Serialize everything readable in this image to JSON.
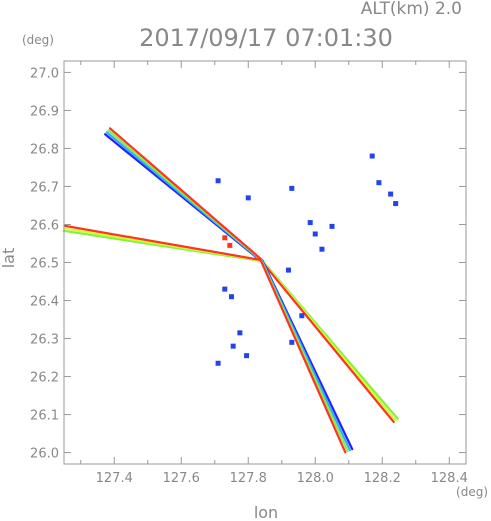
{
  "chart_data": {
    "type": "scatter",
    "title": "2017/09/17 07:01:30",
    "subtitle": "ALT(km)  2.0",
    "xlabel": "lon",
    "ylabel": "lat",
    "xunit": "(deg)",
    "yunit": "(deg)",
    "xlim": [
      127.25,
      128.45
    ],
    "ylim": [
      25.97,
      27.03
    ],
    "xticks": [
      "127.4",
      "127.6",
      "127.8",
      "128.0",
      "128.2",
      "128.4"
    ],
    "xtick_values": [
      127.4,
      127.6,
      127.8,
      128.0,
      128.2,
      128.4
    ],
    "yticks": [
      "26.0",
      "26.1",
      "26.2",
      "26.3",
      "26.4",
      "26.5",
      "26.6",
      "26.7",
      "26.8",
      "26.9",
      "27.0"
    ],
    "ytick_values": [
      26.0,
      26.1,
      26.2,
      26.3,
      26.4,
      26.5,
      26.6,
      26.7,
      26.8,
      26.9,
      27.0
    ],
    "radar_center": [
      127.84,
      26.505
    ],
    "beams": [
      {
        "from": [
          127.84,
          26.505
        ],
        "to": [
          127.38,
          26.845
        ],
        "colors": [
          "#2222ff",
          "#33aaff",
          "#88ee44",
          "#ff3322"
        ]
      },
      {
        "from": [
          127.84,
          26.505
        ],
        "to": [
          127.25,
          26.59
        ],
        "colors": [
          "#88ee44",
          "#ccff33",
          "#ff3322"
        ]
      },
      {
        "from": [
          127.84,
          26.505
        ],
        "to": [
          128.24,
          26.085
        ],
        "colors": [
          "#88ee44",
          "#ccff33",
          "#ff3322"
        ]
      },
      {
        "from": [
          127.84,
          26.505
        ],
        "to": [
          128.1,
          26.005
        ],
        "colors": [
          "#2222ff",
          "#33aaff",
          "#88ee44",
          "#ff3322"
        ]
      }
    ],
    "echoes": [
      {
        "x": 127.71,
        "y": 26.715,
        "color": "#2244ee"
      },
      {
        "x": 127.8,
        "y": 26.67,
        "color": "#2244ee"
      },
      {
        "x": 127.93,
        "y": 26.695,
        "color": "#2244ee"
      },
      {
        "x": 127.92,
        "y": 26.48,
        "color": "#2244ee"
      },
      {
        "x": 127.985,
        "y": 26.605,
        "color": "#2244ee"
      },
      {
        "x": 128.0,
        "y": 26.575,
        "color": "#2244ee"
      },
      {
        "x": 128.02,
        "y": 26.535,
        "color": "#2244ee"
      },
      {
        "x": 128.05,
        "y": 26.595,
        "color": "#2244ee"
      },
      {
        "x": 128.17,
        "y": 26.78,
        "color": "#2244ee"
      },
      {
        "x": 128.19,
        "y": 26.71,
        "color": "#2244ee"
      },
      {
        "x": 128.225,
        "y": 26.68,
        "color": "#2244ee"
      },
      {
        "x": 128.24,
        "y": 26.655,
        "color": "#2244ee"
      },
      {
        "x": 127.73,
        "y": 26.43,
        "color": "#2244ee"
      },
      {
        "x": 127.75,
        "y": 26.41,
        "color": "#2244ee"
      },
      {
        "x": 127.775,
        "y": 26.315,
        "color": "#2244ee"
      },
      {
        "x": 127.755,
        "y": 26.28,
        "color": "#2244ee"
      },
      {
        "x": 127.795,
        "y": 26.255,
        "color": "#2244ee"
      },
      {
        "x": 127.71,
        "y": 26.235,
        "color": "#2244ee"
      },
      {
        "x": 127.93,
        "y": 26.29,
        "color": "#2244ee"
      },
      {
        "x": 127.96,
        "y": 26.36,
        "color": "#2244ee"
      },
      {
        "x": 127.73,
        "y": 26.565,
        "color": "#ff3322"
      },
      {
        "x": 127.745,
        "y": 26.545,
        "color": "#ff3322"
      }
    ]
  }
}
